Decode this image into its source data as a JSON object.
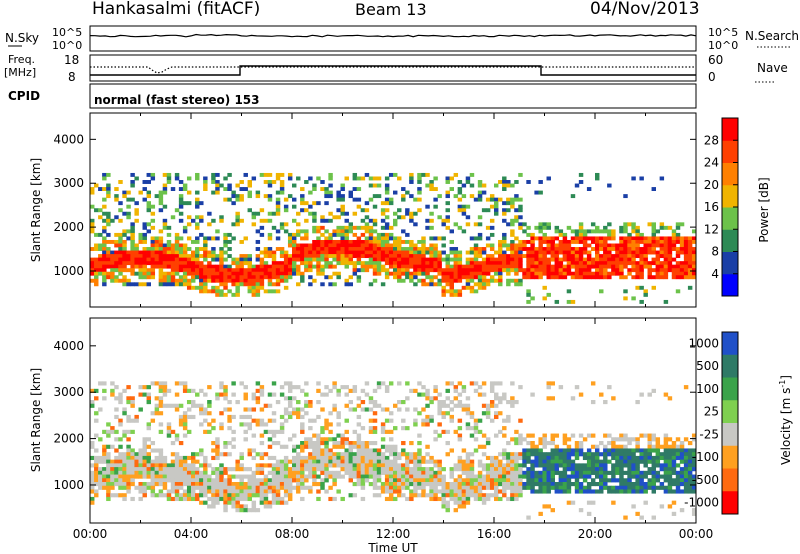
{
  "header": {
    "station": "Hankasalmi (fitACF)",
    "beam": "Beam 13",
    "date": "04/Nov/2013"
  },
  "noise_panel": {
    "left_label": "N.Sky",
    "left_ticks": [
      "10^5",
      "10^0"
    ],
    "right_ticks": [
      "10^5",
      "10^0"
    ],
    "right_label": "N.Search"
  },
  "freq_panel": {
    "left_label_line1": "Freq.",
    "left_label_line2": "[MHz]",
    "left_ticks": [
      "18",
      "8"
    ],
    "right_ticks": [
      "60",
      "0"
    ],
    "right_label": "Nave"
  },
  "cpid_panel": {
    "label": "CPID",
    "text": "normal (fast stereo) 153"
  },
  "colors": {
    "power": [
      "#0000ff",
      "#1a3fa6",
      "#2d8a55",
      "#6cc24a",
      "#f0b400",
      "#ff8000",
      "#ff4000",
      "#ff0000"
    ],
    "velocity": [
      "#2050c8",
      "#2f7a66",
      "#3aa34a",
      "#7fd050",
      "#c8c8c4",
      "#ffa020",
      "#ff6a10",
      "#ff0000"
    ],
    "ground_scatter": "#c8c8c4"
  },
  "chart_data": [
    {
      "type": "heatmap",
      "name": "power",
      "xlabel": "Time UT",
      "ylabel": "Slant Range [km]",
      "x_ticks": [
        "00:00",
        "04:00",
        "08:00",
        "12:00",
        "16:00",
        "20:00",
        "00:00"
      ],
      "xlim_hours": [
        0,
        24
      ],
      "y_ticks": [
        1000,
        2000,
        3000,
        4000
      ],
      "ylim": [
        180,
        4600
      ],
      "colorbar": {
        "label": "Power [dB]",
        "ticks": [
          "4",
          "8",
          "12",
          "16",
          "20",
          "24",
          "28"
        ],
        "range": [
          0,
          32
        ]
      }
    },
    {
      "type": "heatmap",
      "name": "velocity",
      "xlabel": "Time UT",
      "ylabel": "Slant Range [km]",
      "x_ticks": [
        "00:00",
        "04:00",
        "08:00",
        "12:00",
        "16:00",
        "20:00",
        "00:00"
      ],
      "xlim_hours": [
        0,
        24
      ],
      "y_ticks": [
        1000,
        2000,
        3000,
        4000
      ],
      "ylim": [
        180,
        4600
      ],
      "colorbar": {
        "label_main": "Velocity [m s",
        "label_sup": "-1",
        "label_end": "]",
        "ticks": [
          "1000",
          "500",
          "100",
          "25",
          "-25",
          "-100",
          "-500",
          "-1000"
        ]
      }
    }
  ]
}
